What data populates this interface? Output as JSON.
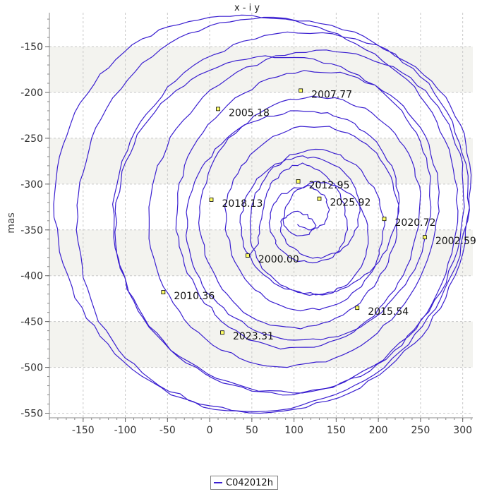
{
  "chart_data": {
    "type": "line",
    "title": "x - i y",
    "xlabel": "",
    "ylabel": "mas",
    "xlim": [
      -190,
      312
    ],
    "ylim": [
      -555,
      -113
    ],
    "x_ticks": [
      -150,
      -100,
      -50,
      0,
      50,
      100,
      150,
      200,
      250,
      300
    ],
    "y_ticks": [
      -150,
      -200,
      -250,
      -300,
      -350,
      -400,
      -450,
      -500,
      -550
    ],
    "grid": true,
    "legend_position": "bottom-center",
    "series": [
      {
        "name": "C042012h",
        "color": "#3a1fd0",
        "path_points": [
          [
            47,
            -378
          ],
          [
            58,
            -365
          ],
          [
            60,
            -342
          ],
          [
            65,
            -318
          ],
          [
            72,
            -300
          ],
          [
            88,
            -285
          ],
          [
            110,
            -277
          ],
          [
            130,
            -285
          ],
          [
            148,
            -300
          ],
          [
            160,
            -322
          ],
          [
            163,
            -345
          ],
          [
            160,
            -362
          ],
          [
            150,
            -375
          ],
          [
            132,
            -381
          ],
          [
            112,
            -378
          ],
          [
            95,
            -368
          ],
          [
            84,
            -352
          ],
          [
            86,
            -338
          ],
          [
            100,
            -330
          ],
          [
            116,
            -333
          ],
          [
            126,
            -345
          ],
          [
            118,
            -355
          ],
          [
            100,
            -355
          ],
          [
            88,
            -345
          ],
          [
            90,
            -325
          ],
          [
            104,
            -306
          ],
          [
            126,
            -297
          ],
          [
            150,
            -302
          ],
          [
            172,
            -315
          ],
          [
            186,
            -340
          ],
          [
            188,
            -365
          ],
          [
            180,
            -390
          ],
          [
            163,
            -410
          ],
          [
            140,
            -420
          ],
          [
            112,
            -420
          ],
          [
            84,
            -410
          ],
          [
            62,
            -392
          ],
          [
            50,
            -368
          ],
          [
            48,
            -340
          ],
          [
            54,
            -310
          ],
          [
            70,
            -287
          ],
          [
            95,
            -268
          ],
          [
            125,
            -262
          ],
          [
            155,
            -268
          ],
          [
            180,
            -285
          ],
          [
            198,
            -310
          ],
          [
            207,
            -338
          ],
          [
            204,
            -365
          ],
          [
            196,
            -390
          ],
          [
            180,
            -412
          ],
          [
            158,
            -428
          ],
          [
            130,
            -437
          ],
          [
            100,
            -437
          ],
          [
            72,
            -428
          ],
          [
            48,
            -410
          ],
          [
            30,
            -385
          ],
          [
            20,
            -355
          ],
          [
            18,
            -325
          ],
          [
            28,
            -295
          ],
          [
            48,
            -268
          ],
          [
            75,
            -248
          ],
          [
            108,
            -237
          ],
          [
            142,
            -237
          ],
          [
            172,
            -248
          ],
          [
            198,
            -266
          ],
          [
            215,
            -292
          ],
          [
            224,
            -322
          ],
          [
            222,
            -355
          ],
          [
            212,
            -385
          ],
          [
            195,
            -412
          ],
          [
            172,
            -434
          ],
          [
            142,
            -450
          ],
          [
            108,
            -458
          ],
          [
            72,
            -454
          ],
          [
            40,
            -440
          ],
          [
            15,
            -415
          ],
          [
            -2,
            -385
          ],
          [
            -12,
            -350
          ],
          [
            -10,
            -315
          ],
          [
            2,
            -280
          ],
          [
            22,
            -250
          ],
          [
            52,
            -226
          ],
          [
            85,
            -210
          ],
          [
            122,
            -204
          ],
          [
            158,
            -208
          ],
          [
            192,
            -222
          ],
          [
            220,
            -245
          ],
          [
            240,
            -275
          ],
          [
            250,
            -310
          ],
          [
            248,
            -345
          ],
          [
            238,
            -382
          ],
          [
            220,
            -415
          ],
          [
            195,
            -444
          ],
          [
            162,
            -466
          ],
          [
            124,
            -478
          ],
          [
            84,
            -480
          ],
          [
            46,
            -470
          ],
          [
            14,
            -450
          ],
          [
            -12,
            -422
          ],
          [
            -30,
            -388
          ],
          [
            -40,
            -350
          ],
          [
            -38,
            -310
          ],
          [
            -26,
            -270
          ],
          [
            -2,
            -235
          ],
          [
            30,
            -206
          ],
          [
            70,
            -185
          ],
          [
            112,
            -176
          ],
          [
            155,
            -178
          ],
          [
            196,
            -192
          ],
          [
            230,
            -215
          ],
          [
            256,
            -248
          ],
          [
            270,
            -288
          ],
          [
            272,
            -330
          ],
          [
            262,
            -372
          ],
          [
            244,
            -412
          ],
          [
            216,
            -448
          ],
          [
            180,
            -476
          ],
          [
            138,
            -494
          ],
          [
            92,
            -500
          ],
          [
            46,
            -494
          ],
          [
            4,
            -476
          ],
          [
            -30,
            -448
          ],
          [
            -55,
            -412
          ],
          [
            -70,
            -370
          ],
          [
            -72,
            -325
          ],
          [
            -62,
            -280
          ],
          [
            -40,
            -240
          ],
          [
            -8,
            -205
          ],
          [
            32,
            -178
          ],
          [
            78,
            -160
          ],
          [
            126,
            -154
          ],
          [
            174,
            -158
          ],
          [
            218,
            -172
          ],
          [
            256,
            -198
          ],
          [
            284,
            -235
          ],
          [
            300,
            -278
          ],
          [
            302,
            -325
          ],
          [
            294,
            -372
          ],
          [
            274,
            -418
          ],
          [
            245,
            -458
          ],
          [
            206,
            -492
          ],
          [
            160,
            -516
          ],
          [
            110,
            -528
          ],
          [
            58,
            -526
          ],
          [
            8,
            -512
          ],
          [
            -36,
            -488
          ],
          [
            -72,
            -455
          ],
          [
            -98,
            -415
          ],
          [
            -112,
            -370
          ],
          [
            -115,
            -322
          ],
          [
            -104,
            -275
          ],
          [
            -82,
            -232
          ],
          [
            -50,
            -194
          ],
          [
            -8,
            -164
          ],
          [
            40,
            -144
          ],
          [
            92,
            -134
          ],
          [
            146,
            -136
          ],
          [
            198,
            -148
          ],
          [
            244,
            -172
          ],
          [
            280,
            -205
          ],
          [
            302,
            -245
          ],
          [
            310,
            -290
          ],
          [
            306,
            -340
          ],
          [
            292,
            -390
          ],
          [
            268,
            -436
          ],
          [
            236,
            -475
          ],
          [
            195,
            -508
          ],
          [
            148,
            -530
          ],
          [
            96,
            -545
          ],
          [
            40,
            -548
          ],
          [
            -12,
            -540
          ],
          [
            -60,
            -520
          ],
          [
            -100,
            -490
          ],
          [
            -132,
            -450
          ],
          [
            -150,
            -402
          ],
          [
            -158,
            -350
          ],
          [
            -154,
            -298
          ],
          [
            -140,
            -250
          ],
          [
            -115,
            -206
          ],
          [
            -80,
            -168
          ],
          [
            -36,
            -140
          ],
          [
            12,
            -124
          ],
          [
            64,
            -118
          ],
          [
            118,
            -122
          ],
          [
            172,
            -134
          ],
          [
            220,
            -158
          ],
          [
            260,
            -190
          ],
          [
            288,
            -232
          ],
          [
            304,
            -278
          ],
          [
            308,
            -326
          ],
          [
            300,
            -376
          ],
          [
            280,
            -424
          ],
          [
            252,
            -466
          ],
          [
            212,
            -500
          ],
          [
            166,
            -528
          ],
          [
            114,
            -544
          ],
          [
            60,
            -550
          ],
          [
            6,
            -546
          ],
          [
            -46,
            -530
          ],
          [
            -92,
            -502
          ],
          [
            -130,
            -466
          ],
          [
            -160,
            -424
          ],
          [
            -178,
            -374
          ],
          [
            -185,
            -322
          ],
          [
            -178,
            -270
          ],
          [
            -160,
            -222
          ],
          [
            -130,
            -180
          ],
          [
            -92,
            -148
          ],
          [
            -48,
            -128
          ],
          [
            0,
            -118
          ],
          [
            50,
            -116
          ],
          [
            102,
            -122
          ],
          [
            152,
            -136
          ],
          [
            196,
            -158
          ],
          [
            234,
            -186
          ],
          [
            264,
            -222
          ],
          [
            284,
            -262
          ],
          [
            294,
            -306
          ],
          [
            292,
            -352
          ],
          [
            280,
            -398
          ],
          [
            258,
            -440
          ],
          [
            228,
            -476
          ],
          [
            190,
            -504
          ],
          [
            146,
            -522
          ],
          [
            98,
            -530
          ],
          [
            50,
            -526
          ],
          [
            4,
            -512
          ],
          [
            -38,
            -488
          ],
          [
            -72,
            -456
          ],
          [
            -96,
            -418
          ],
          [
            -110,
            -376
          ],
          [
            -112,
            -330
          ],
          [
            -104,
            -286
          ],
          [
            -86,
            -246
          ],
          [
            -58,
            -212
          ],
          [
            -22,
            -186
          ],
          [
            20,
            -168
          ],
          [
            66,
            -160
          ],
          [
            112,
            -162
          ],
          [
            156,
            -172
          ],
          [
            196,
            -192
          ],
          [
            228,
            -220
          ],
          [
            250,
            -254
          ],
          [
            262,
            -292
          ],
          [
            262,
            -334
          ],
          [
            252,
            -374
          ],
          [
            232,
            -410
          ],
          [
            204,
            -440
          ],
          [
            170,
            -460
          ],
          [
            132,
            -470
          ],
          [
            92,
            -470
          ],
          [
            54,
            -460
          ],
          [
            22,
            -442
          ],
          [
            -4,
            -418
          ],
          [
            -20,
            -388
          ],
          [
            -28,
            -356
          ],
          [
            -26,
            -322
          ],
          [
            -14,
            -290
          ],
          [
            6,
            -262
          ],
          [
            34,
            -240
          ],
          [
            68,
            -226
          ],
          [
            104,
            -220
          ],
          [
            140,
            -222
          ],
          [
            172,
            -234
          ],
          [
            198,
            -254
          ],
          [
            216,
            -280
          ],
          [
            224,
            -310
          ],
          [
            222,
            -342
          ],
          [
            210,
            -372
          ],
          [
            190,
            -396
          ],
          [
            164,
            -412
          ],
          [
            134,
            -420
          ],
          [
            104,
            -418
          ],
          [
            76,
            -408
          ],
          [
            54,
            -390
          ],
          [
            40,
            -368
          ],
          [
            36,
            -342
          ],
          [
            42,
            -316
          ],
          [
            56,
            -294
          ],
          [
            78,
            -278
          ],
          [
            104,
            -270
          ],
          [
            130,
            -272
          ],
          [
            154,
            -282
          ],
          [
            170,
            -300
          ],
          [
            178,
            -322
          ],
          [
            176,
            -346
          ],
          [
            164,
            -366
          ],
          [
            146,
            -380
          ],
          [
            122,
            -386
          ],
          [
            100,
            -382
          ],
          [
            82,
            -370
          ],
          [
            72,
            -352
          ],
          [
            72,
            -332
          ],
          [
            82,
            -314
          ],
          [
            100,
            -304
          ],
          [
            120,
            -302
          ],
          [
            136,
            -312
          ],
          [
            142,
            -328
          ],
          [
            136,
            -344
          ],
          [
            120,
            -350
          ],
          [
            104,
            -344
          ]
        ],
        "labeled_points": [
          {
            "x": 45,
            "y": -378,
            "label": "2000.00"
          },
          {
            "x": 255,
            "y": -358,
            "label": "2002.59"
          },
          {
            "x": 10,
            "y": -218,
            "label": "2005.18"
          },
          {
            "x": 108,
            "y": -198,
            "label": "2007.77"
          },
          {
            "x": -55,
            "y": -418,
            "label": "2010.36"
          },
          {
            "x": 105,
            "y": -297,
            "label": "2012.95"
          },
          {
            "x": 175,
            "y": -435,
            "label": "2015.54"
          },
          {
            "x": 2,
            "y": -317,
            "label": "2018.13"
          },
          {
            "x": 207,
            "y": -338,
            "label": "2020.72"
          },
          {
            "x": 15,
            "y": -462,
            "label": "2023.31"
          },
          {
            "x": 130,
            "y": -316,
            "label": "2025.92"
          }
        ]
      }
    ]
  },
  "legend": {
    "label": "C042012h"
  }
}
